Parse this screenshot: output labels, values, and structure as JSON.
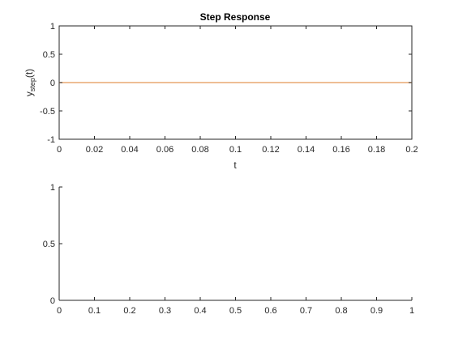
{
  "chart_data": [
    {
      "type": "line",
      "title": "Step Response",
      "xlabel": "t",
      "ylabel_main": "y",
      "ylabel_sub": "step",
      "ylabel_tail": "(t)",
      "xlim": [
        0,
        0.2
      ],
      "ylim": [
        -1,
        1
      ],
      "xticks": [
        0,
        0.02,
        0.04,
        0.06,
        0.08,
        0.1,
        0.12,
        0.14,
        0.16,
        0.18,
        0.2
      ],
      "xtick_labels": [
        "0",
        "0.02",
        "0.04",
        "0.06",
        "0.08",
        "0.1",
        "0.12",
        "0.14",
        "0.16",
        "0.18",
        "0.2"
      ],
      "yticks": [
        -1,
        -0.5,
        0,
        0.5,
        1
      ],
      "ytick_labels": [
        "-1",
        "-0.5",
        "0",
        "0.5",
        "1"
      ],
      "grid": false,
      "series": [
        {
          "color": "#e8a872",
          "x": [
            0,
            0.2
          ],
          "y": [
            0,
            0
          ]
        }
      ]
    },
    {
      "type": "line",
      "title": "",
      "xlabel": "",
      "ylabel": "",
      "xlim": [
        0,
        1
      ],
      "ylim": [
        0,
        1
      ],
      "xticks": [
        0,
        0.1,
        0.2,
        0.3,
        0.4,
        0.5,
        0.6,
        0.7,
        0.8,
        0.9,
        1
      ],
      "xtick_labels": [
        "0",
        "0.1",
        "0.2",
        "0.3",
        "0.4",
        "0.5",
        "0.6",
        "0.7",
        "0.8",
        "0.9",
        "1"
      ],
      "yticks": [
        0,
        0.5,
        1
      ],
      "ytick_labels": [
        "0",
        "0.5",
        "1"
      ],
      "grid": false,
      "series": []
    }
  ]
}
